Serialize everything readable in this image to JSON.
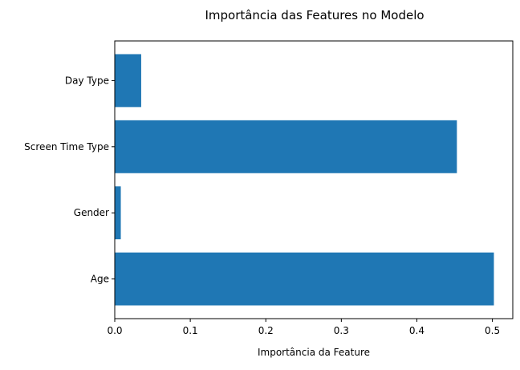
{
  "chart_data": {
    "type": "bar",
    "orientation": "horizontal",
    "title": "Importância das Features no Modelo",
    "xlabel": "Importância da Feature",
    "ylabel": "",
    "categories": [
      "Age",
      "Gender",
      "Screen Time Type",
      "Day Type"
    ],
    "values": [
      0.502,
      0.008,
      0.453,
      0.035
    ],
    "xlim": [
      0,
      0.527
    ],
    "xticks": [
      "0.0",
      "0.1",
      "0.2",
      "0.3",
      "0.4",
      "0.5"
    ],
    "grid": false,
    "legend": "none",
    "bar_color": "#1f77b4"
  }
}
